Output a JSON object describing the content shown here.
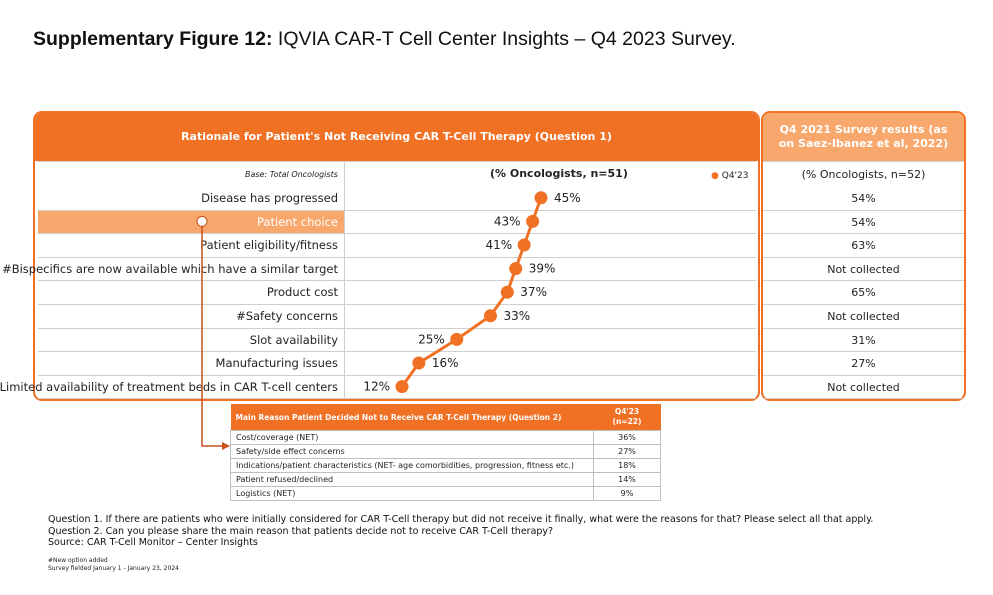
{
  "figure": {
    "title_bold": "Supplementary Figure 12:",
    "title_rest": " IQVIA CAR-T Cell Center Insights – Q4 2023 Survey."
  },
  "main_panel": {
    "header": "Rationale for Patient's Not Receiving CAR T-Cell Therapy (Question 1)",
    "base_label": "Base: Total Oncologists",
    "column_header": "(% Oncologists, n=51)",
    "legend_label": "Q4'23"
  },
  "side_panel": {
    "header": "Q4 2021 Survey results (as on Saez-Ibanez et al, 2022)",
    "column_header": "(% Oncologists, n=52)",
    "values": [
      "54%",
      "54%",
      "63%",
      "Not collected",
      "65%",
      "Not collected",
      "31%",
      "27%",
      "Not collected"
    ]
  },
  "chart_data": {
    "type": "line",
    "series": [
      {
        "name": "Q4'23",
        "categories": [
          "Disease has progressed",
          "Patient choice",
          "Patient eligibility/fitness",
          "#Bispecifics are now available which have a similar target",
          "Product cost",
          "#Safety concerns",
          "Slot availability",
          "Manufacturing issues",
          "Limited availability of treatment beds in CAR T-cell centers"
        ],
        "values": [
          45,
          43,
          41,
          39,
          37,
          33,
          25,
          16,
          12
        ],
        "labels": [
          "45%",
          "43%",
          "41%",
          "39%",
          "37%",
          "33%",
          "25%",
          "16%",
          "12%"
        ],
        "color": "#f07024"
      }
    ],
    "orientation": "horizontal",
    "highlighted_category": "Patient choice"
  },
  "q2_table": {
    "header": "Main Reason Patient Decided Not to Receive CAR T-Cell Therapy (Question 2)",
    "col_header_1": "Q4'23",
    "col_header_2": "(n=22)",
    "rows": [
      {
        "label": "Cost/coverage (NET)",
        "value": "36%"
      },
      {
        "label": "Safety/side effect concerns",
        "value": "27%"
      },
      {
        "label": "Indications/patient characteristics (NET- age comorbidities, progression, fitness etc.)",
        "value": "18%"
      },
      {
        "label": "Patient refused/declined",
        "value": "14%"
      },
      {
        "label": "Logistics (NET)",
        "value": "9%"
      }
    ]
  },
  "notes": {
    "q1": "Question 1. If there are patients who were initially considered for CAR T-Cell therapy but did not receive it finally, what were the reasons for that? Please select all that apply.",
    "q2": "Question 2. Can you please share the main reason that patients decide not to receive CAR T-Cell therapy?",
    "source": "Source: CAR T-Cell Monitor – Center Insights",
    "new_option": "#New option added",
    "fielded": "Survey fielded January 1 - January 23, 2024"
  },
  "colors": {
    "accent": "#f07024",
    "accent_light": "#f8a86c"
  }
}
